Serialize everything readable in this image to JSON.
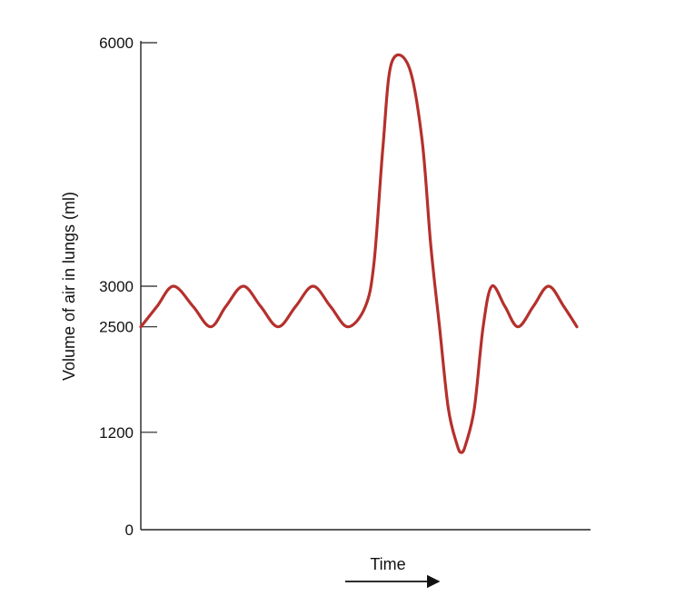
{
  "chart_data": {
    "type": "line",
    "title": "",
    "xlabel": "Time",
    "ylabel": "Volume of air in lungs (ml)",
    "xlim": [
      0,
      1
    ],
    "ylim": [
      0,
      6000
    ],
    "yticks": [
      0,
      1200,
      2500,
      3000,
      6000
    ],
    "ytick_labels": [
      "0",
      "1200",
      "2500",
      "3000",
      "6000"
    ],
    "grid": false,
    "legend": "none",
    "line_color": "#b5302c",
    "series": [
      {
        "x": [
          0.0,
          0.037,
          0.075,
          0.12,
          0.16,
          0.195,
          0.235,
          0.275,
          0.315,
          0.355,
          0.395,
          0.435,
          0.475,
          0.515,
          0.535,
          0.555,
          0.575,
          0.615,
          0.645,
          0.665,
          0.685,
          0.705,
          0.725,
          0.735,
          0.745,
          0.765,
          0.785,
          0.805,
          0.835,
          0.865,
          0.9,
          0.935,
          0.97,
          1.0
        ],
        "y": [
          2500,
          2750,
          3000,
          2750,
          2500,
          2750,
          3000,
          2750,
          2500,
          2750,
          3000,
          2750,
          2500,
          2750,
          3300,
          4700,
          5750,
          5700,
          4800,
          3500,
          2500,
          1500,
          1050,
          950,
          1050,
          1500,
          2500,
          3000,
          2750,
          2500,
          2750,
          3000,
          2750,
          2500
        ]
      }
    ]
  }
}
